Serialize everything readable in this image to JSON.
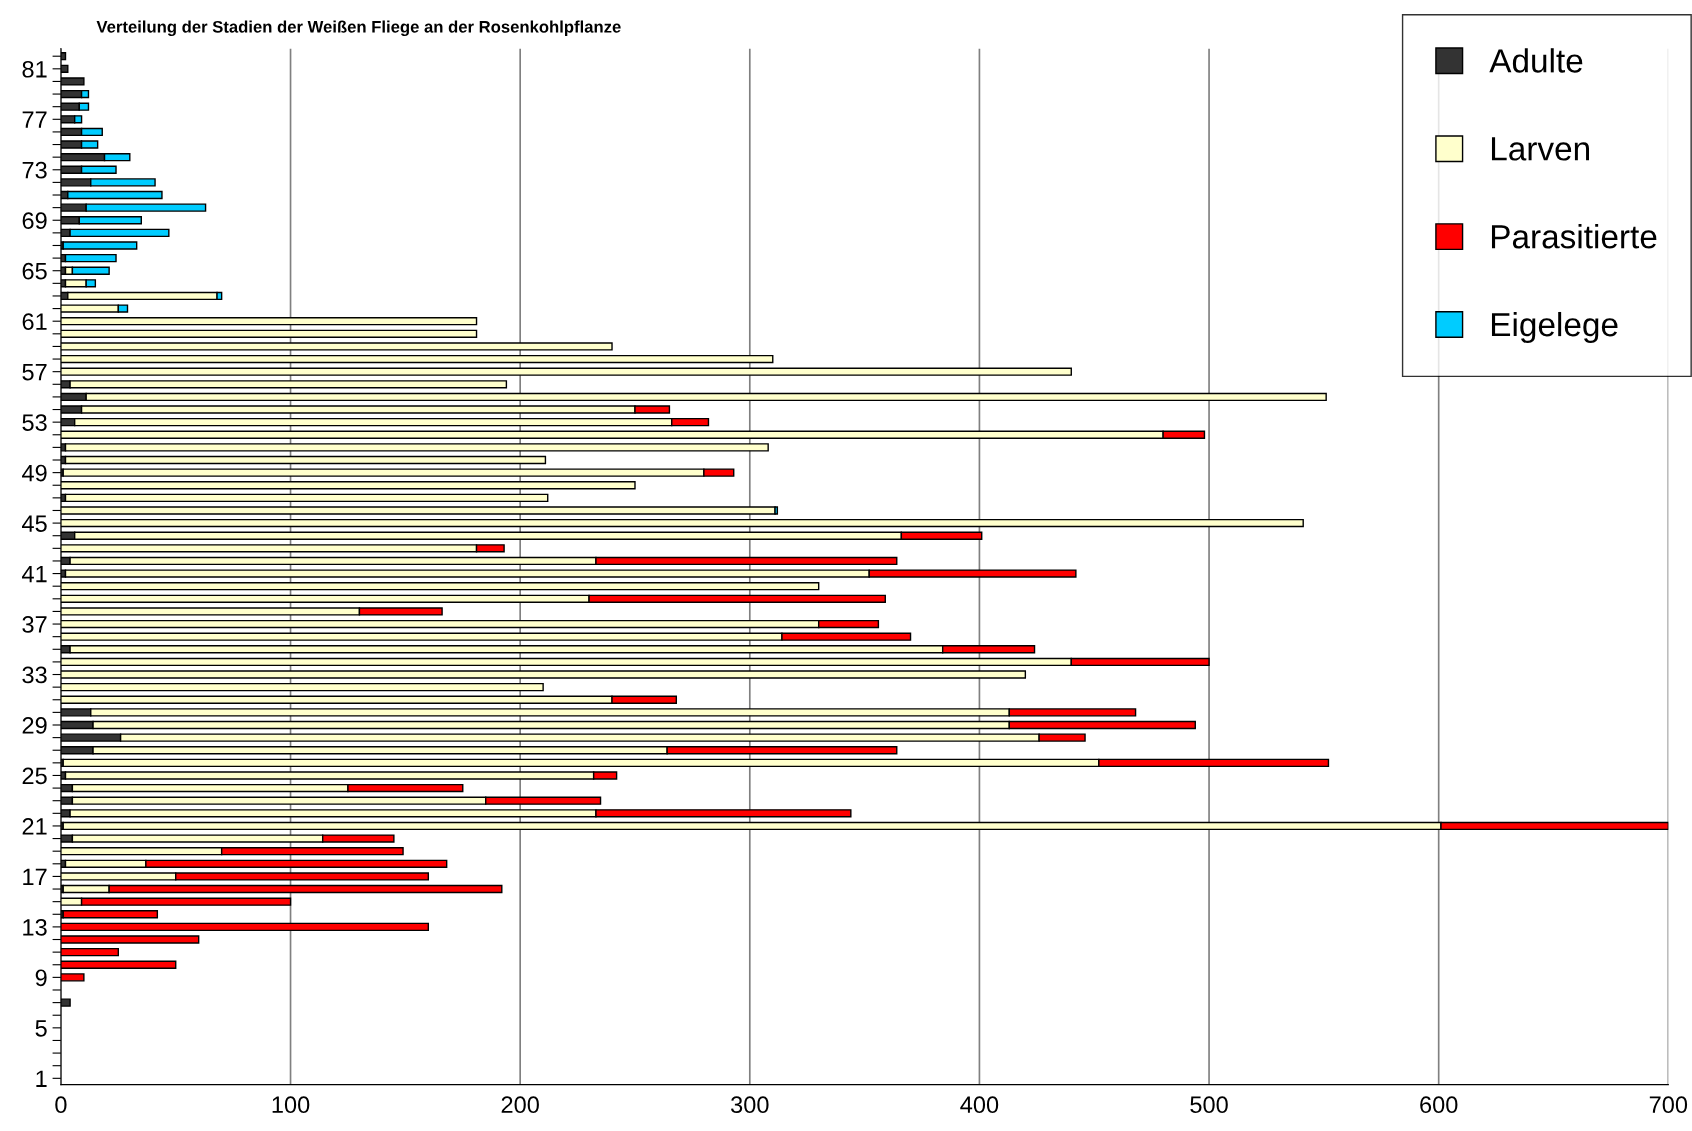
{
  "chart_data": {
    "type": "bar",
    "orientation": "horizontal",
    "stacked": true,
    "title": "Verteilung der Stadien der Weißen Fliege an der Rosenkohlpflanze",
    "categories": [
      null,
      "81",
      null,
      null,
      null,
      "77",
      null,
      null,
      null,
      "73",
      null,
      null,
      null,
      "69",
      null,
      null,
      null,
      "65",
      null,
      null,
      null,
      "61",
      null,
      null,
      null,
      "57",
      null,
      null,
      null,
      "53",
      null,
      null,
      null,
      "49",
      null,
      null,
      null,
      "45",
      null,
      null,
      null,
      "41",
      null,
      null,
      null,
      "37",
      null,
      null,
      null,
      "33",
      null,
      null,
      null,
      "29",
      null,
      null,
      null,
      "25",
      null,
      null,
      null,
      "21",
      null,
      null,
      null,
      "17",
      null,
      null,
      null,
      "13",
      null,
      null,
      null,
      "9",
      null,
      null,
      null,
      "5",
      null,
      null,
      null,
      "1"
    ],
    "series": [
      {
        "name": "Adulte",
        "color": "#333333",
        "values": [
          2,
          3,
          10,
          9,
          8,
          6,
          9,
          9,
          19,
          9,
          13,
          3,
          11,
          8,
          4,
          1,
          2,
          2,
          2,
          3,
          null,
          null,
          null,
          null,
          null,
          null,
          4,
          11,
          9,
          6,
          null,
          2,
          2,
          1,
          null,
          2,
          null,
          null,
          6,
          null,
          4,
          2,
          null,
          null,
          null,
          null,
          null,
          4,
          null,
          null,
          null,
          null,
          13,
          14,
          26,
          14,
          1,
          2,
          5,
          5,
          4,
          1,
          5,
          null,
          2,
          null,
          1,
          null,
          1,
          null,
          null,
          null,
          null,
          null,
          null,
          4,
          null,
          null,
          null,
          null,
          null,
          null
        ]
      },
      {
        "name": "Larven",
        "color": "#ffffcc",
        "values": [
          null,
          null,
          null,
          null,
          null,
          null,
          null,
          null,
          null,
          null,
          null,
          null,
          null,
          null,
          null,
          null,
          null,
          3,
          9,
          65,
          25,
          181,
          181,
          240,
          310,
          440,
          190,
          540,
          241,
          260,
          480,
          306,
          209,
          279,
          250,
          210,
          311,
          541,
          360,
          181,
          229,
          350,
          330,
          230,
          130,
          330,
          314,
          380,
          440,
          420,
          210,
          240,
          400,
          399,
          400,
          250,
          451,
          230,
          120,
          180,
          229,
          600,
          109,
          70,
          35,
          50,
          20,
          9,
          null,
          null,
          null,
          null,
          null,
          null,
          null,
          null,
          null,
          null,
          null,
          null,
          null,
          null
        ]
      },
      {
        "name": "Parasitierte",
        "color": "#ff0000",
        "values": [
          null,
          null,
          null,
          null,
          null,
          null,
          null,
          null,
          null,
          null,
          null,
          null,
          null,
          null,
          null,
          null,
          null,
          null,
          null,
          null,
          null,
          null,
          null,
          null,
          null,
          null,
          null,
          null,
          15,
          16,
          18,
          null,
          null,
          13,
          null,
          null,
          null,
          null,
          35,
          12,
          131,
          90,
          null,
          129,
          36,
          26,
          56,
          40,
          60,
          null,
          null,
          28,
          55,
          81,
          20,
          100,
          100,
          10,
          50,
          50,
          111,
          99,
          31,
          79,
          131,
          110,
          171,
          91,
          41,
          160,
          60,
          25,
          50,
          10,
          null,
          null,
          null,
          null,
          null,
          null,
          null,
          null
        ]
      },
      {
        "name": "Eigelege",
        "color": "#00ccff",
        "values": [
          null,
          null,
          null,
          3,
          4,
          3,
          9,
          7,
          11,
          15,
          28,
          41,
          52,
          27,
          43,
          32,
          22,
          16,
          4,
          2,
          4,
          null,
          null,
          null,
          null,
          null,
          null,
          null,
          null,
          null,
          null,
          null,
          null,
          null,
          null,
          null,
          1,
          null,
          null,
          null,
          null,
          null,
          null,
          null,
          null,
          null,
          null,
          null,
          null,
          null,
          null,
          null,
          null,
          null,
          null,
          null,
          null,
          null,
          null,
          null,
          null,
          null,
          null,
          null,
          null,
          null,
          null,
          null,
          null,
          null,
          null,
          null,
          null,
          null,
          null,
          null,
          null,
          null,
          null,
          null,
          null,
          null
        ]
      }
    ],
    "xlim": [
      0,
      700
    ],
    "xticks": [
      0,
      100,
      200,
      300,
      400,
      500,
      600,
      700
    ],
    "grid": "x",
    "legend": "top right"
  }
}
